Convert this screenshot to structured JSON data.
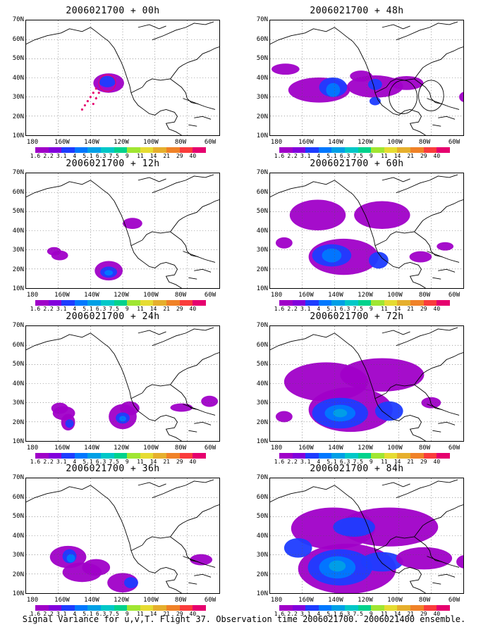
{
  "caption": "Signal Variance for u,v,T. Flight 37. Observation time 2006021700. 2006021400 ensemble.",
  "lat_labels": [
    "70N",
    "60N",
    "50N",
    "40N",
    "30N",
    "20N",
    "10N"
  ],
  "lon_labels": [
    "180",
    "160W",
    "140W",
    "120W",
    "100W",
    "80W",
    "60W"
  ],
  "colorbar": {
    "labels": [
      "1.6",
      "2.2",
      "3.1",
      "4",
      "5.1",
      "6.3",
      "7.5",
      "9",
      "11",
      "14",
      "21",
      "29",
      "40"
    ],
    "colors": [
      "#a000c8",
      "#8200dc",
      "#1e3cff",
      "#0078ff",
      "#00a0e6",
      "#00c8c8",
      "#00d28c",
      "#a0e632",
      "#e6dc32",
      "#e6af2d",
      "#f08228",
      "#fa3c3c",
      "#e6006e"
    ]
  },
  "panels": [
    {
      "title": "2006021700 + 00h"
    },
    {
      "title": "2006021700 + 12h"
    },
    {
      "title": "2006021700 + 24h"
    },
    {
      "title": "2006021700 + 36h"
    },
    {
      "title": "2006021700 + 48h"
    },
    {
      "title": "2006021700 + 60h"
    },
    {
      "title": "2006021700 + 72h"
    },
    {
      "title": "2006021700 + 84h"
    }
  ]
}
